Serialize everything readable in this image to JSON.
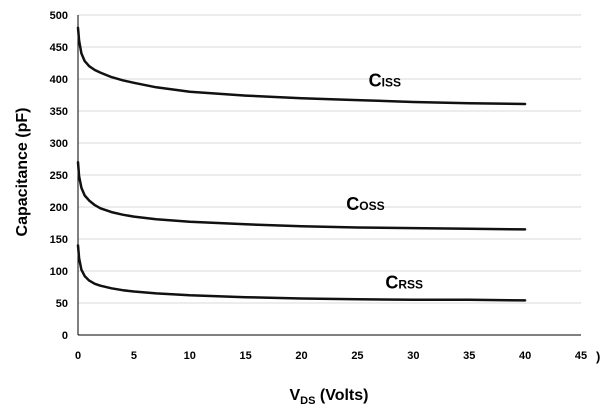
{
  "chart_data": {
    "type": "line",
    "xlabel": {
      "main": "V",
      "sub": "DS",
      "rest": " (Volts)"
    },
    "ylabel": "Capacitance (pF)",
    "xlim": [
      0,
      45
    ],
    "ylim": [
      0,
      500
    ],
    "x_ticks": [
      "0",
      "5",
      "10",
      "15",
      "20",
      "25",
      "30",
      "35",
      "40",
      "45"
    ],
    "y_ticks": [
      "0",
      "50",
      "100",
      "150",
      "200",
      "250",
      "300",
      "350",
      "400",
      "450",
      "500"
    ],
    "x_tick_values": [
      0,
      5,
      10,
      15,
      20,
      25,
      30,
      35,
      40,
      45
    ],
    "y_tick_values": [
      0,
      50,
      100,
      150,
      200,
      250,
      300,
      350,
      400,
      450,
      500
    ],
    "grid": "horizontal",
    "series": [
      {
        "name": "CISS",
        "label_main": "C",
        "label_sub": "ISS",
        "x": [
          0,
          0.1,
          0.3,
          0.6,
          1,
          1.5,
          2,
          3,
          4,
          5,
          7,
          10,
          15,
          20,
          25,
          30,
          35,
          40
        ],
        "y": [
          480,
          460,
          440,
          428,
          420,
          414,
          410,
          403,
          398,
          394,
          387,
          380,
          374,
          370,
          367,
          364,
          362,
          361
        ]
      },
      {
        "name": "COSS",
        "label_main": "C",
        "label_sub": "OSS",
        "x": [
          0,
          0.1,
          0.3,
          0.6,
          1,
          1.5,
          2,
          3,
          4,
          5,
          7,
          10,
          15,
          20,
          25,
          30,
          35,
          40
        ],
        "y": [
          270,
          248,
          230,
          218,
          210,
          203,
          198,
          192,
          188,
          185,
          181,
          177,
          173,
          170,
          168,
          167,
          166,
          165
        ]
      },
      {
        "name": "CRSS",
        "label_main": "C",
        "label_sub": "RSS",
        "x": [
          0,
          0.1,
          0.3,
          0.6,
          1,
          1.5,
          2,
          3,
          4,
          5,
          7,
          10,
          15,
          20,
          25,
          30,
          35,
          40
        ],
        "y": [
          140,
          120,
          102,
          92,
          85,
          80,
          77,
          73,
          70,
          68,
          65,
          62,
          59,
          57,
          56,
          55,
          55,
          54
        ]
      }
    ],
    "stray_text": ")"
  }
}
